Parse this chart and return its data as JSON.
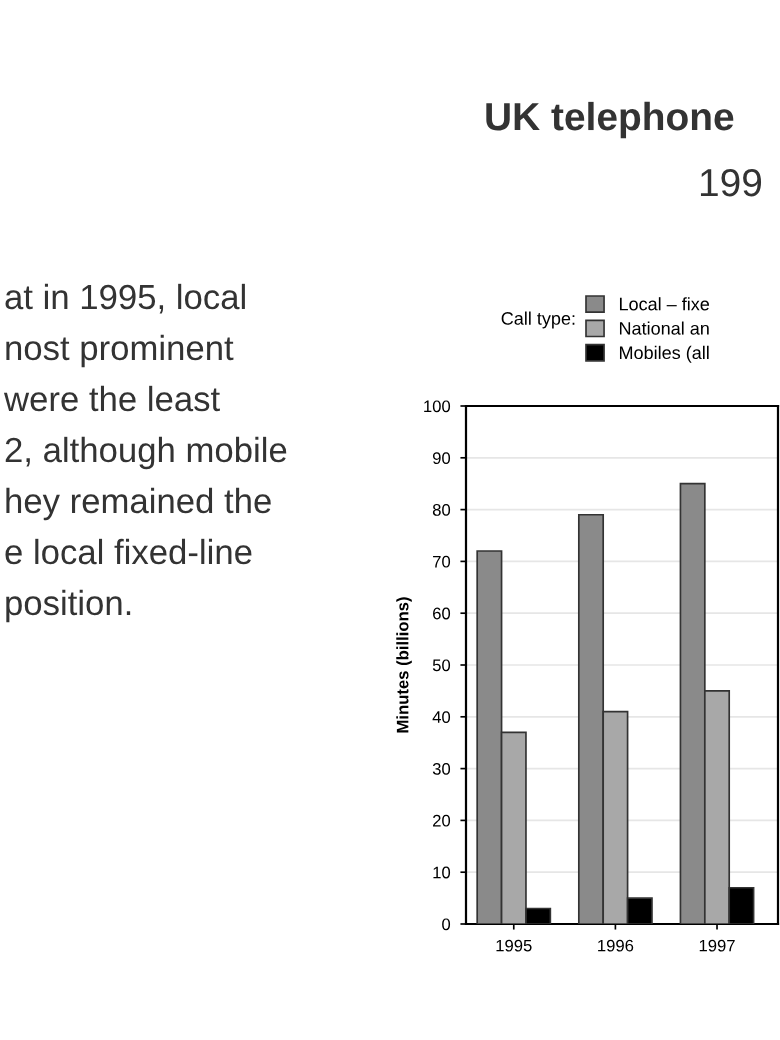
{
  "chart_data": {
    "type": "bar",
    "title": "UK telephone",
    "subtitle": "199",
    "ylabel": "Minutes (billions)",
    "legend_title": "Call type:",
    "categories": [
      "1995",
      "1996",
      "1997"
    ],
    "series": [
      {
        "name": "Local – fixe",
        "color": "#8a8a8a",
        "values": [
          72,
          79,
          85
        ]
      },
      {
        "name": "National an",
        "color": "#a8a8a8",
        "values": [
          37,
          41,
          45
        ]
      },
      {
        "name": "Mobiles (all",
        "color": "#000000",
        "values": [
          3,
          5,
          7
        ]
      }
    ],
    "ylim": [
      0,
      100
    ],
    "yticks": [
      0,
      10,
      20,
      30,
      40,
      50,
      60,
      70,
      80,
      90,
      100
    ],
    "grid": "y",
    "legend": "top",
    "annotations": [
      "at in 1995, local",
      "nost prominent",
      "were the least",
      "2, although mobile",
      "hey remained the",
      "e local fixed-line",
      "position."
    ]
  }
}
